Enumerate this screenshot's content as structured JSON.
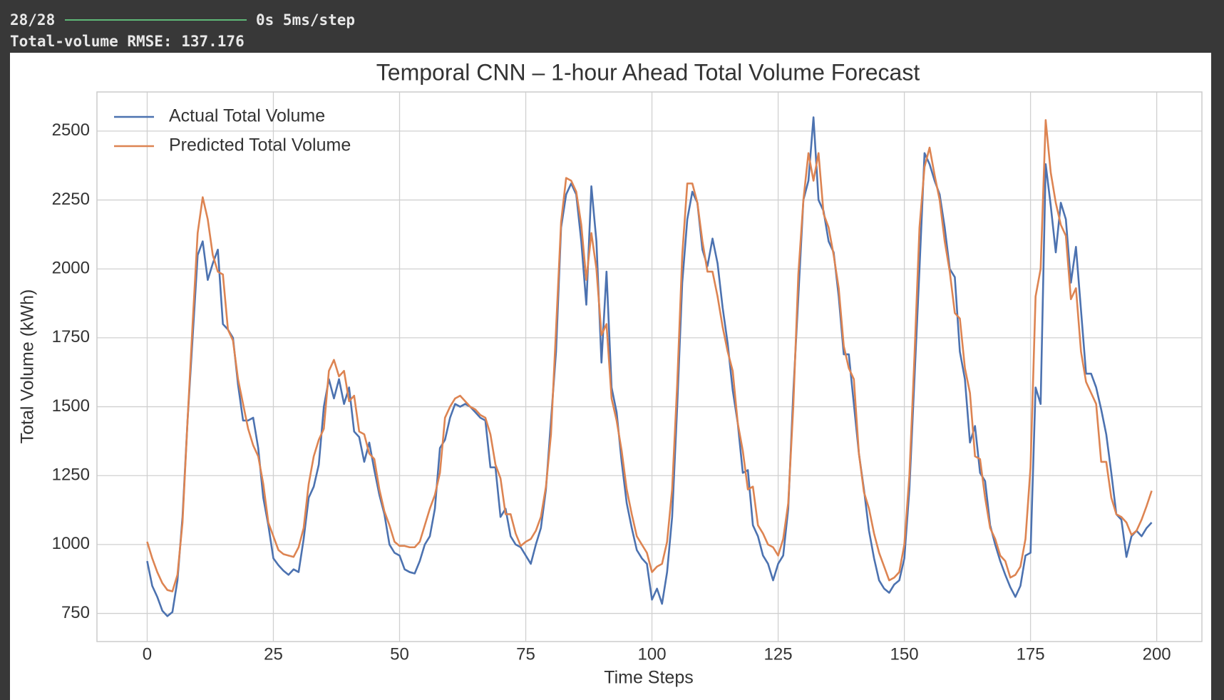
{
  "console": {
    "progress": "28/28",
    "timing": "0s 5ms/step",
    "result": "Total-volume RMSE: 137.176"
  },
  "chart_data": {
    "type": "line",
    "title": "Temporal CNN – 1-hour Ahead Total Volume Forecast",
    "x_label": "Time Steps",
    "y_label": "Total Volume (kWh)",
    "x": [
      0,
      1,
      2,
      3,
      4,
      5,
      6,
      7,
      8,
      9,
      10,
      11,
      12,
      13,
      14,
      15,
      16,
      17,
      18,
      19,
      20,
      21,
      22,
      23,
      24,
      25,
      26,
      27,
      28,
      29,
      30,
      31,
      32,
      33,
      34,
      35,
      36,
      37,
      38,
      39,
      40,
      41,
      42,
      43,
      44,
      45,
      46,
      47,
      48,
      49,
      50,
      51,
      52,
      53,
      54,
      55,
      56,
      57,
      58,
      59,
      60,
      61,
      62,
      63,
      64,
      65,
      66,
      67,
      68,
      69,
      70,
      71,
      72,
      73,
      74,
      75,
      76,
      77,
      78,
      79,
      80,
      81,
      82,
      83,
      84,
      85,
      86,
      87,
      88,
      89,
      90,
      91,
      92,
      93,
      94,
      95,
      96,
      97,
      98,
      99,
      100,
      101,
      102,
      103,
      104,
      105,
      106,
      107,
      108,
      109,
      110,
      111,
      112,
      113,
      114,
      115,
      116,
      117,
      118,
      119,
      120,
      121,
      122,
      123,
      124,
      125,
      126,
      127,
      128,
      129,
      130,
      131,
      132,
      133,
      134,
      135,
      136,
      137,
      138,
      139,
      140,
      141,
      142,
      143,
      144,
      145,
      146,
      147,
      148,
      149,
      150,
      151,
      152,
      153,
      154,
      155,
      156,
      157,
      158,
      159,
      160,
      161,
      162,
      163,
      164,
      165,
      166,
      167,
      168,
      169,
      170,
      171,
      172,
      173,
      174,
      175,
      176,
      177,
      178,
      179,
      180,
      181,
      182,
      183,
      184,
      185,
      186,
      187,
      188,
      189,
      190,
      191,
      192,
      193,
      194,
      195,
      196,
      197,
      198,
      199
    ],
    "series": [
      {
        "name": "Actual Total Volume",
        "color": "#4c72b0",
        "values": [
          940,
          850,
          810,
          760,
          740,
          755,
          870,
          1100,
          1450,
          1750,
          2050,
          2100,
          1960,
          2020,
          2070,
          1800,
          1780,
          1750,
          1580,
          1450,
          1450,
          1460,
          1350,
          1170,
          1070,
          950,
          925,
          905,
          890,
          910,
          900,
          1020,
          1170,
          1210,
          1290,
          1500,
          1600,
          1530,
          1600,
          1510,
          1570,
          1410,
          1390,
          1300,
          1370,
          1270,
          1180,
          1110,
          1000,
          970,
          960,
          910,
          900,
          895,
          940,
          1000,
          1030,
          1130,
          1350,
          1380,
          1460,
          1510,
          1500,
          1510,
          1500,
          1480,
          1460,
          1450,
          1280,
          1280,
          1100,
          1130,
          1030,
          1000,
          990,
          960,
          930,
          1000,
          1060,
          1200,
          1450,
          1700,
          2150,
          2270,
          2310,
          2270,
          2100,
          1870,
          2300,
          2100,
          1660,
          1990,
          1570,
          1480,
          1300,
          1150,
          1060,
          980,
          950,
          930,
          800,
          840,
          785,
          900,
          1100,
          1500,
          1950,
          2180,
          2280,
          2240,
          2070,
          2010,
          2110,
          2020,
          1860,
          1730,
          1560,
          1440,
          1260,
          1270,
          1070,
          1030,
          960,
          930,
          870,
          930,
          960,
          1130,
          1550,
          1900,
          2250,
          2320,
          2550,
          2250,
          2210,
          2100,
          2060,
          1900,
          1690,
          1690,
          1510,
          1330,
          1200,
          1050,
          950,
          870,
          840,
          825,
          855,
          870,
          950,
          1200,
          1600,
          2000,
          2420,
          2380,
          2320,
          2270,
          2150,
          2000,
          1970,
          1700,
          1600,
          1370,
          1430,
          1260,
          1230,
          1070,
          1000,
          940,
          890,
          845,
          810,
          850,
          960,
          970,
          1570,
          1510,
          2380,
          2230,
          2060,
          2240,
          2180,
          1950,
          2080,
          1850,
          1620,
          1620,
          1570,
          1490,
          1400,
          1260,
          1110,
          1090,
          955,
          1030,
          1050,
          1030,
          1060,
          1080
        ]
      },
      {
        "name": "Predicted Total Volume",
        "color": "#dd8452",
        "values": [
          1010,
          950,
          900,
          860,
          835,
          830,
          890,
          1080,
          1450,
          1800,
          2130,
          2260,
          2180,
          2050,
          1990,
          1980,
          1780,
          1740,
          1600,
          1510,
          1420,
          1360,
          1320,
          1220,
          1080,
          1030,
          980,
          965,
          960,
          955,
          990,
          1060,
          1220,
          1320,
          1380,
          1420,
          1630,
          1670,
          1610,
          1630,
          1520,
          1540,
          1410,
          1400,
          1330,
          1310,
          1200,
          1120,
          1070,
          1010,
          995,
          995,
          990,
          990,
          1010,
          1070,
          1130,
          1180,
          1260,
          1460,
          1500,
          1530,
          1540,
          1520,
          1500,
          1490,
          1470,
          1460,
          1400,
          1290,
          1240,
          1110,
          1110,
          1040,
          995,
          1010,
          1020,
          1050,
          1100,
          1210,
          1400,
          1780,
          2170,
          2330,
          2320,
          2280,
          2160,
          1960,
          2130,
          2000,
          1760,
          1800,
          1530,
          1450,
          1340,
          1200,
          1110,
          1030,
          1000,
          970,
          900,
          920,
          930,
          1010,
          1200,
          1580,
          2050,
          2310,
          2310,
          2240,
          2100,
          1990,
          1990,
          1900,
          1790,
          1700,
          1630,
          1440,
          1340,
          1200,
          1210,
          1070,
          1040,
          1000,
          990,
          960,
          1020,
          1150,
          1500,
          1980,
          2250,
          2420,
          2320,
          2420,
          2200,
          2150,
          2050,
          1930,
          1720,
          1640,
          1600,
          1330,
          1190,
          1130,
          1040,
          970,
          920,
          870,
          880,
          900,
          1000,
          1250,
          1680,
          2150,
          2370,
          2440,
          2340,
          2250,
          2100,
          1990,
          1840,
          1820,
          1640,
          1550,
          1320,
          1310,
          1170,
          1060,
          1020,
          960,
          940,
          880,
          890,
          920,
          1020,
          1280,
          1900,
          2000,
          2540,
          2350,
          2240,
          2160,
          2120,
          1890,
          1930,
          1700,
          1590,
          1550,
          1510,
          1300,
          1300,
          1170,
          1110,
          1100,
          1080,
          1035,
          1050,
          1090,
          1140,
          1195
        ]
      }
    ],
    "xlim": [
      -9.95,
      208.95
    ],
    "xticks": [
      0,
      25,
      50,
      75,
      100,
      125,
      150,
      175,
      200
    ],
    "ylim": [
      648,
      2642
    ],
    "yticks": [
      750,
      1000,
      1250,
      1500,
      1750,
      2000,
      2250,
      2500
    ],
    "grid": true,
    "legend": "upper left"
  }
}
